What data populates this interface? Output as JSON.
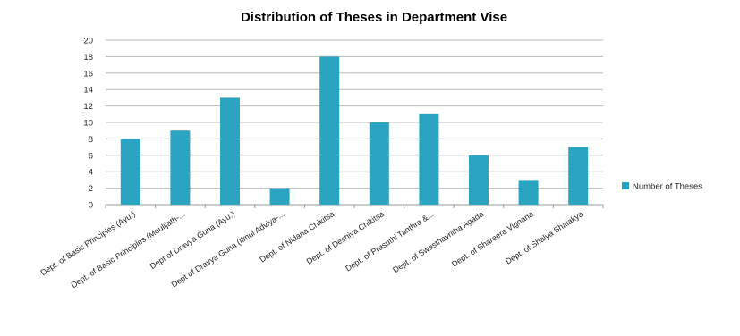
{
  "chart_data": {
    "type": "bar",
    "title": "Distribution of Theses in Department Vise",
    "categories": [
      "Dept. of Basic Principles (Ayu.)",
      "Dept. of Basic Principles (Moulijath-...",
      "Dept of Dravya Guna (Ayu.)",
      "Dept of Dravya Guna (Ilmul Adviya-...",
      "Dept. of Nidana Chikitsa",
      "Dept. of Deshiya Chikitsa",
      "Dept. of Prasuthi Tanthra &...",
      "Dept. of Swasthavritha Agada",
      "Dept. of Shareera Vignana",
      "Dept. of Shalya Shalakya"
    ],
    "series": [
      {
        "name": "Number of Theses",
        "values": [
          8,
          9,
          13,
          2,
          18,
          10,
          11,
          6,
          3,
          7
        ]
      }
    ],
    "yticks": [
      "0",
      "2",
      "4",
      "6",
      "8",
      "10",
      "12",
      "14",
      "16",
      "18",
      "20"
    ],
    "ylim": [
      0,
      20
    ],
    "grid": true,
    "legend_position": "right",
    "bar_color": "#2aa4c0"
  }
}
